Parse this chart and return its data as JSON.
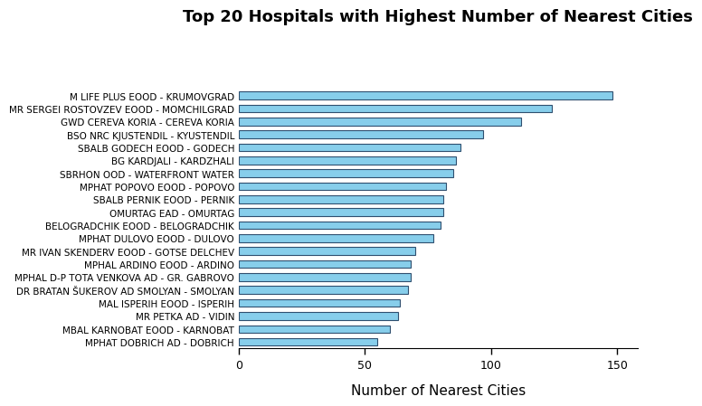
{
  "title": "Top 20 Hospitals with Highest Number of Nearest Cities",
  "xlabel": "Number of Nearest Cities",
  "categories": [
    "MPHAT DOBRICH AD - DOBRICH",
    "MBAL KARNOBAT EOOD - KARNOBAT",
    "MR PETKA AD - VIDIN",
    "MAL ISPERIH EOOD - ISPERIH",
    "DR BRATAN ŠUKEROV AD SMOLYAN - SMOLYAN",
    "MPHAL D-P TOTA VENKOVA AD - GR. GABROVO",
    "MPHAL ARDINO EOOD - ARDINO",
    "MR IVAN SKENDERV EOOD - GOTSE DELCHEV",
    "MPHAT DULOVO EOOD - DULOVO",
    "BELOGRADCHIK EOOD - BELOGRADCHIK",
    "OMURTAG EAD - OMURTAG",
    "SBALB PERNIK EOOD - PERNIK",
    "MPHAT POPOVO EOOD - POPOVO",
    "SBRHON OOD - WATERFRONT WATER",
    "BG KARDJALI - KARDZHALI",
    "SBALB GODECH EOOD - GODECH",
    "BSO NRC KJUSTENDIL - KYUSTENDIL",
    "GWD CEREVA KORIA - CEREVA KORIA",
    "MR SERGEI ROSTOVZEV EOOD - MOMCHILGRAD",
    "M LIFE PLUS EOOD - KRUMOVGRAD"
  ],
  "values": [
    55,
    60,
    63,
    64,
    67,
    68,
    68,
    70,
    77,
    80,
    81,
    81,
    82,
    85,
    86,
    88,
    97,
    112,
    124,
    148
  ],
  "bar_color": "#87CEEB",
  "bar_edgecolor": "#2F4F6F",
  "background_color": "#ffffff",
  "title_fontsize": 13,
  "label_fontsize": 7.5,
  "xlabel_fontsize": 11,
  "xlim": [
    0,
    158
  ],
  "xticks": [
    0,
    50,
    100,
    150
  ]
}
